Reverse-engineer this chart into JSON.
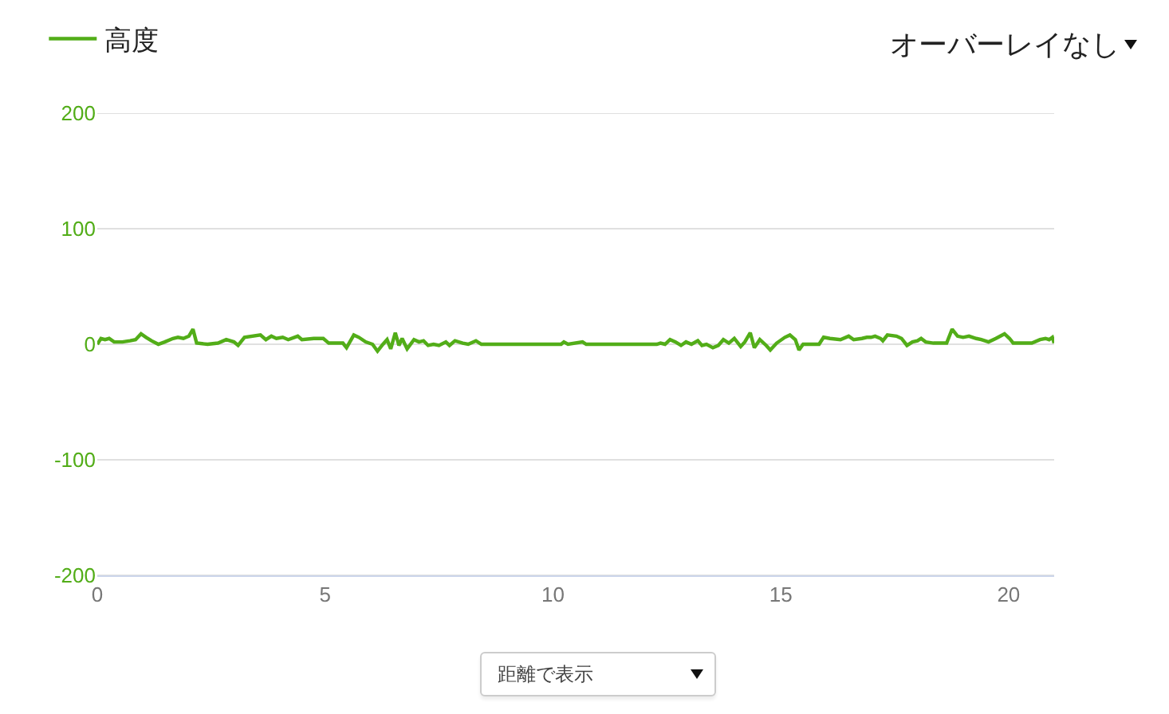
{
  "chart_data": {
    "type": "line",
    "series": [
      {
        "name": "高度",
        "color": "#52ad18",
        "x": [
          0,
          0.08,
          0.17,
          0.26,
          0.37,
          0.55,
          0.72,
          0.84,
          0.96,
          1.07,
          1.19,
          1.34,
          1.48,
          1.66,
          1.77,
          1.89,
          2.01,
          2.1,
          2.18,
          2.42,
          2.65,
          2.83,
          3.0,
          3.09,
          3.23,
          3.58,
          3.7,
          3.82,
          3.93,
          4.07,
          4.19,
          4.4,
          4.49,
          4.75,
          4.96,
          5.08,
          5.39,
          5.47,
          5.63,
          5.74,
          5.89,
          6.04,
          6.15,
          6.27,
          6.36,
          6.44,
          6.54,
          6.62,
          6.69,
          6.8,
          6.95,
          7.06,
          7.16,
          7.26,
          7.38,
          7.5,
          7.65,
          7.73,
          7.85,
          8.02,
          8.14,
          8.31,
          8.43,
          10.18,
          10.24,
          10.33,
          10.65,
          10.73,
          12.28,
          12.36,
          12.46,
          12.57,
          12.69,
          12.81,
          12.92,
          13.04,
          13.18,
          13.27,
          13.37,
          13.51,
          13.63,
          13.74,
          13.86,
          13.98,
          14.12,
          14.21,
          14.33,
          14.42,
          14.54,
          14.68,
          14.77,
          14.91,
          15.09,
          15.2,
          15.32,
          15.4,
          15.49,
          15.84,
          15.94,
          16.08,
          16.31,
          16.49,
          16.6,
          16.78,
          16.89,
          16.98,
          17.07,
          17.19,
          17.24,
          17.34,
          17.54,
          17.65,
          17.77,
          17.89,
          18.0,
          18.08,
          18.18,
          18.35,
          18.64,
          18.76,
          18.88,
          19.0,
          19.13,
          19.29,
          19.4,
          19.56,
          19.72,
          19.91,
          20.02,
          20.1,
          20.51,
          20.69,
          20.81,
          20.89,
          20.96,
          21.0
        ],
        "values": [
          0,
          5,
          4,
          5,
          2,
          2,
          3,
          4,
          9,
          6,
          3,
          0,
          2,
          5,
          6,
          5,
          7,
          13,
          1,
          0,
          1,
          4,
          2,
          -1,
          6,
          8,
          4,
          7,
          5,
          6,
          4,
          7,
          4,
          5,
          5,
          1,
          1,
          -3,
          8,
          6,
          2,
          0,
          -6,
          0,
          4,
          -4,
          10,
          -1,
          5,
          -4,
          4,
          2,
          3,
          -1,
          0,
          -1,
          2,
          -1,
          3,
          1,
          0,
          3,
          0,
          0,
          2,
          0,
          2,
          0,
          0,
          1,
          0,
          4,
          2,
          -1,
          2,
          0,
          3,
          -1,
          0,
          -3,
          -1,
          4,
          1,
          5,
          -2,
          2,
          10,
          -3,
          4,
          -1,
          -5,
          1,
          6,
          8,
          4,
          -5,
          0,
          0,
          6,
          5,
          4,
          7,
          4,
          5,
          6,
          6,
          7,
          5,
          3,
          8,
          7,
          5,
          -1,
          2,
          3,
          5,
          2,
          1,
          1,
          13,
          7,
          6,
          7,
          5,
          4,
          2,
          5,
          9,
          5,
          1,
          1,
          4,
          5,
          4,
          6,
          1
        ]
      }
    ],
    "xlim": [
      0,
      21
    ],
    "xticks": [
      0,
      5,
      10,
      15,
      20
    ],
    "ylim": [
      -200,
      200
    ],
    "yticks": [
      -200,
      -100,
      0,
      100,
      200
    ],
    "grid": "y",
    "legend": "top left",
    "line_style": "solid",
    "annotations": [
      "オーバーレイなし",
      "距離で表示"
    ]
  }
}
